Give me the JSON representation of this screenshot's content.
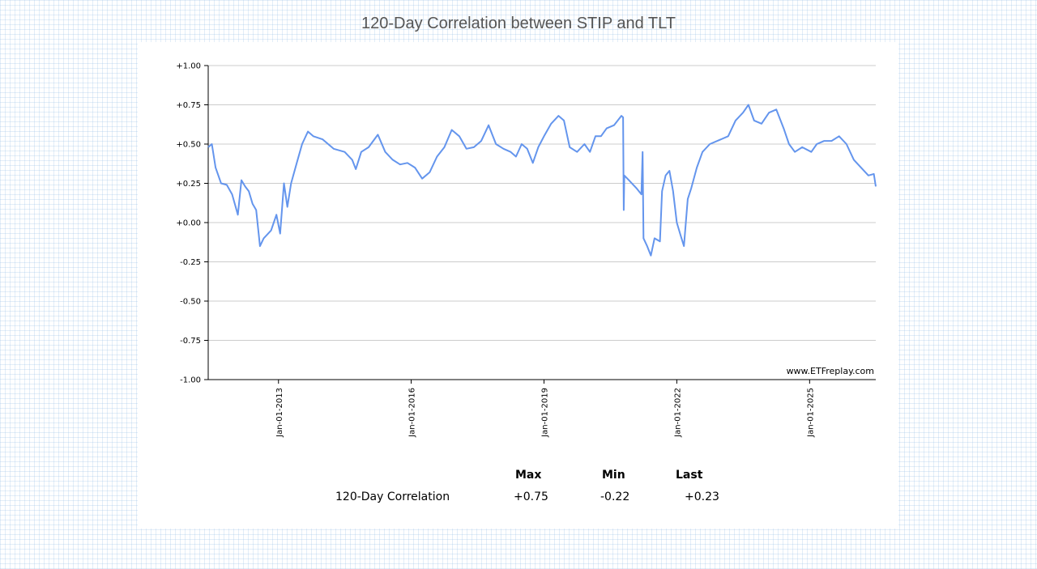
{
  "title": "120-Day Correlation between STIP and TLT",
  "watermark": "www.ETFreplay.com",
  "colors": {
    "line": "#6495ED",
    "grid": "#cccccc",
    "axis": "#000000",
    "title": "#555555"
  },
  "stats": {
    "headers": {
      "max": "Max",
      "min": "Min",
      "last": "Last"
    },
    "row_label": "120-Day Correlation",
    "max": "+0.75",
    "min": "-0.22",
    "last": "+0.23"
  },
  "chart_data": {
    "type": "line",
    "title": "120-Day Correlation between STIP and TLT",
    "xlabel": "",
    "ylabel": "",
    "x_range": [
      "2011-06-01",
      "2026-07-01"
    ],
    "ylim": [
      -1.0,
      1.0
    ],
    "y_ticks": [
      "+1.00",
      "+0.75",
      "+0.50",
      "+0.25",
      "+0.00",
      "-0.25",
      "-0.50",
      "-0.75",
      "-1.00"
    ],
    "x_ticks": [
      {
        "date": "2013-01-01",
        "label": "Jan-01-2013"
      },
      {
        "date": "2016-01-01",
        "label": "Jan-01-2016"
      },
      {
        "date": "2019-01-01",
        "label": "Jan-01-2019"
      },
      {
        "date": "2022-01-01",
        "label": "Jan-01-2022"
      },
      {
        "date": "2025-01-01",
        "label": "Jan-01-2025"
      }
    ],
    "grid": true,
    "legend": "none",
    "series": [
      {
        "values": [
          [
            "2011-06-01",
            0.48
          ],
          [
            "2011-07-01",
            0.5
          ],
          [
            "2011-08-01",
            0.35
          ],
          [
            "2011-09-15",
            0.25
          ],
          [
            "2011-11-01",
            0.24
          ],
          [
            "2011-12-15",
            0.18
          ],
          [
            "2012-02-01",
            0.05
          ],
          [
            "2012-03-01",
            0.27
          ],
          [
            "2012-04-01",
            0.23
          ],
          [
            "2012-05-01",
            0.2
          ],
          [
            "2012-06-01",
            0.12
          ],
          [
            "2012-07-01",
            0.08
          ],
          [
            "2012-08-01",
            -0.15
          ],
          [
            "2012-09-01",
            -0.1
          ],
          [
            "2012-11-01",
            -0.05
          ],
          [
            "2012-12-15",
            0.05
          ],
          [
            "2013-01-15",
            -0.07
          ],
          [
            "2013-02-15",
            0.25
          ],
          [
            "2013-03-15",
            0.1
          ],
          [
            "2013-04-15",
            0.25
          ],
          [
            "2013-06-01",
            0.38
          ],
          [
            "2013-07-15",
            0.5
          ],
          [
            "2013-09-01",
            0.58
          ],
          [
            "2013-10-15",
            0.55
          ],
          [
            "2014-01-01",
            0.53
          ],
          [
            "2014-04-01",
            0.47
          ],
          [
            "2014-07-01",
            0.45
          ],
          [
            "2014-09-01",
            0.4
          ],
          [
            "2014-10-01",
            0.34
          ],
          [
            "2014-11-15",
            0.45
          ],
          [
            "2015-01-15",
            0.48
          ],
          [
            "2015-04-01",
            0.56
          ],
          [
            "2015-06-01",
            0.45
          ],
          [
            "2015-08-01",
            0.4
          ],
          [
            "2015-10-01",
            0.37
          ],
          [
            "2015-12-01",
            0.38
          ],
          [
            "2016-02-01",
            0.35
          ],
          [
            "2016-04-01",
            0.28
          ],
          [
            "2016-06-01",
            0.32
          ],
          [
            "2016-08-01",
            0.42
          ],
          [
            "2016-10-01",
            0.48
          ],
          [
            "2016-12-01",
            0.59
          ],
          [
            "2017-02-01",
            0.55
          ],
          [
            "2017-04-01",
            0.47
          ],
          [
            "2017-06-01",
            0.48
          ],
          [
            "2017-08-01",
            0.52
          ],
          [
            "2017-10-01",
            0.62
          ],
          [
            "2017-12-01",
            0.5
          ],
          [
            "2018-02-01",
            0.47
          ],
          [
            "2018-04-01",
            0.45
          ],
          [
            "2018-05-15",
            0.42
          ],
          [
            "2018-07-01",
            0.5
          ],
          [
            "2018-08-15",
            0.47
          ],
          [
            "2018-10-01",
            0.38
          ],
          [
            "2018-11-15",
            0.48
          ],
          [
            "2019-01-01",
            0.55
          ],
          [
            "2019-03-01",
            0.63
          ],
          [
            "2019-05-01",
            0.68
          ],
          [
            "2019-06-15",
            0.65
          ],
          [
            "2019-08-01",
            0.48
          ],
          [
            "2019-10-01",
            0.45
          ],
          [
            "2019-12-01",
            0.5
          ],
          [
            "2020-01-15",
            0.45
          ],
          [
            "2020-03-01",
            0.55
          ],
          [
            "2020-04-15",
            0.55
          ],
          [
            "2020-06-01",
            0.6
          ],
          [
            "2020-08-01",
            0.62
          ],
          [
            "2020-10-01",
            0.68
          ],
          [
            "2020-10-15",
            0.67
          ],
          [
            "2020-10-20",
            0.08
          ],
          [
            "2020-10-25",
            0.3
          ],
          [
            "2020-12-01",
            0.27
          ],
          [
            "2021-02-01",
            0.22
          ],
          [
            "2021-03-15",
            0.18
          ],
          [
            "2021-03-25",
            0.45
          ],
          [
            "2021-04-01",
            -0.1
          ],
          [
            "2021-05-01",
            -0.15
          ],
          [
            "2021-06-01",
            -0.21
          ],
          [
            "2021-07-01",
            -0.1
          ],
          [
            "2021-08-15",
            -0.12
          ],
          [
            "2021-09-01",
            0.2
          ],
          [
            "2021-10-01",
            0.3
          ],
          [
            "2021-11-01",
            0.33
          ],
          [
            "2021-12-01",
            0.2
          ],
          [
            "2022-01-01",
            0.0
          ],
          [
            "2022-02-01",
            -0.08
          ],
          [
            "2022-03-01",
            -0.15
          ],
          [
            "2022-04-01",
            0.15
          ],
          [
            "2022-05-01",
            0.22
          ],
          [
            "2022-06-15",
            0.35
          ],
          [
            "2022-08-01",
            0.45
          ],
          [
            "2022-10-01",
            0.5
          ],
          [
            "2022-12-01",
            0.52
          ],
          [
            "2023-03-01",
            0.55
          ],
          [
            "2023-05-01",
            0.65
          ],
          [
            "2023-07-01",
            0.7
          ],
          [
            "2023-08-15",
            0.75
          ],
          [
            "2023-10-01",
            0.65
          ],
          [
            "2023-12-01",
            0.63
          ],
          [
            "2024-02-01",
            0.7
          ],
          [
            "2024-04-01",
            0.72
          ],
          [
            "2024-06-01",
            0.6
          ],
          [
            "2024-07-15",
            0.5
          ],
          [
            "2024-09-01",
            0.45
          ],
          [
            "2024-11-01",
            0.48
          ],
          [
            "2025-01-15",
            0.45
          ],
          [
            "2025-03-01",
            0.5
          ],
          [
            "2025-05-01",
            0.52
          ],
          [
            "2025-07-01",
            0.52
          ],
          [
            "2025-09-01",
            0.55
          ],
          [
            "2025-11-01",
            0.5
          ],
          [
            "2026-01-01",
            0.4
          ],
          [
            "2026-03-01",
            0.35
          ],
          [
            "2026-05-01",
            0.3
          ],
          [
            "2026-06-15",
            0.31
          ],
          [
            "2026-07-01",
            0.23
          ]
        ]
      }
    ]
  }
}
